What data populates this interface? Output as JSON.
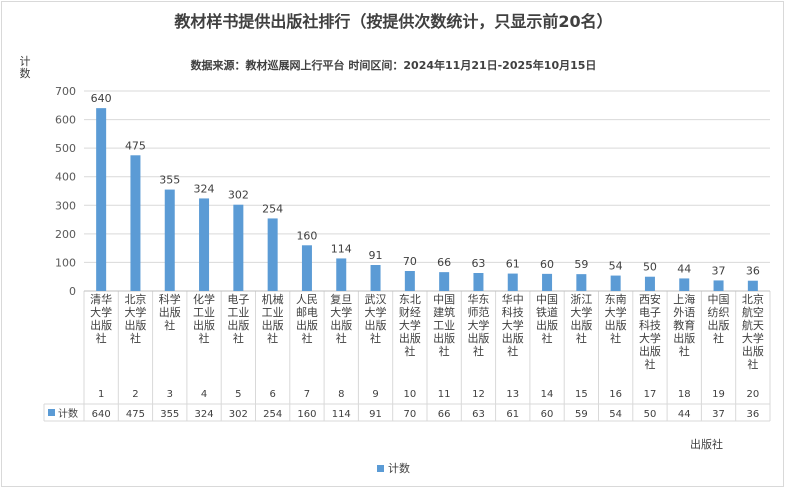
{
  "chart_data": {
    "type": "bar",
    "title": "教材样书提供出版社排行（按提供次数统计，只显示前20名）",
    "subtitle": "数据来源：教材巡展网上行平台 时间区间：2024年11月21日-2025年10月15日",
    "ylabel": "计数",
    "xlabel": "出版社",
    "ylim": [
      0,
      700
    ],
    "yticks": [
      0,
      100,
      200,
      300,
      400,
      500,
      600,
      700
    ],
    "grid": true,
    "legend_position": "bottom",
    "bar_color": "#5b9bd5",
    "categories": [
      "清华大学出版社",
      "北京大学出版社",
      "科学出版社",
      "化学工业出版社",
      "电子工业出版社",
      "机械工业出版社",
      "人民邮电出版社",
      "复旦大学出版社",
      "武汉大学出版社",
      "东北财经大学出版社",
      "中国建筑工业出版社",
      "华东师范大学出版社",
      "华中科技大学出版社",
      "中国铁道出版社",
      "浙江大学出版社",
      "东南大学出版社",
      "西安电子科技大学出版社",
      "上海外语教育出版社",
      "中国纺织出版社",
      "北京航空航天大学出版社"
    ],
    "category_lines": [
      [
        "清华",
        "大学",
        "出版",
        "社"
      ],
      [
        "北京",
        "大学",
        "出版",
        "社"
      ],
      [
        "科学",
        "出版",
        "社"
      ],
      [
        "化学",
        "工业",
        "出版",
        "社"
      ],
      [
        "电子",
        "工业",
        "出版",
        "社"
      ],
      [
        "机械",
        "工业",
        "出版",
        "社"
      ],
      [
        "人民",
        "邮电",
        "出版",
        "社"
      ],
      [
        "复旦",
        "大学",
        "出版",
        "社"
      ],
      [
        "武汉",
        "大学",
        "出版",
        "社"
      ],
      [
        "东北",
        "财经",
        "大学",
        "出版",
        "社"
      ],
      [
        "中国",
        "建筑",
        "工业",
        "出版",
        "社"
      ],
      [
        "华东",
        "师范",
        "大学",
        "出版",
        "社"
      ],
      [
        "华中",
        "科技",
        "大学",
        "出版",
        "社"
      ],
      [
        "中国",
        "铁道",
        "出版",
        "社"
      ],
      [
        "浙江",
        "大学",
        "出版",
        "社"
      ],
      [
        "东南",
        "大学",
        "出版",
        "社"
      ],
      [
        "西安",
        "电子",
        "科技",
        "大学",
        "出版",
        "社"
      ],
      [
        "上海",
        "外语",
        "教育",
        "出版",
        "社"
      ],
      [
        "中国",
        "纺织",
        "出版",
        "社"
      ],
      [
        "北京",
        "航空",
        "航天",
        "大学",
        "出版",
        "社"
      ]
    ],
    "ranks": [
      "1",
      "2",
      "3",
      "4",
      "5",
      "6",
      "7",
      "8",
      "9",
      "10",
      "11",
      "12",
      "13",
      "14",
      "15",
      "16",
      "17",
      "18",
      "19",
      "20"
    ],
    "series": [
      {
        "name": "计数",
        "values": [
          640,
          475,
          355,
          324,
          302,
          254,
          160,
          114,
          91,
          70,
          66,
          63,
          61,
          60,
          59,
          54,
          50,
          44,
          37,
          36
        ]
      }
    ]
  }
}
